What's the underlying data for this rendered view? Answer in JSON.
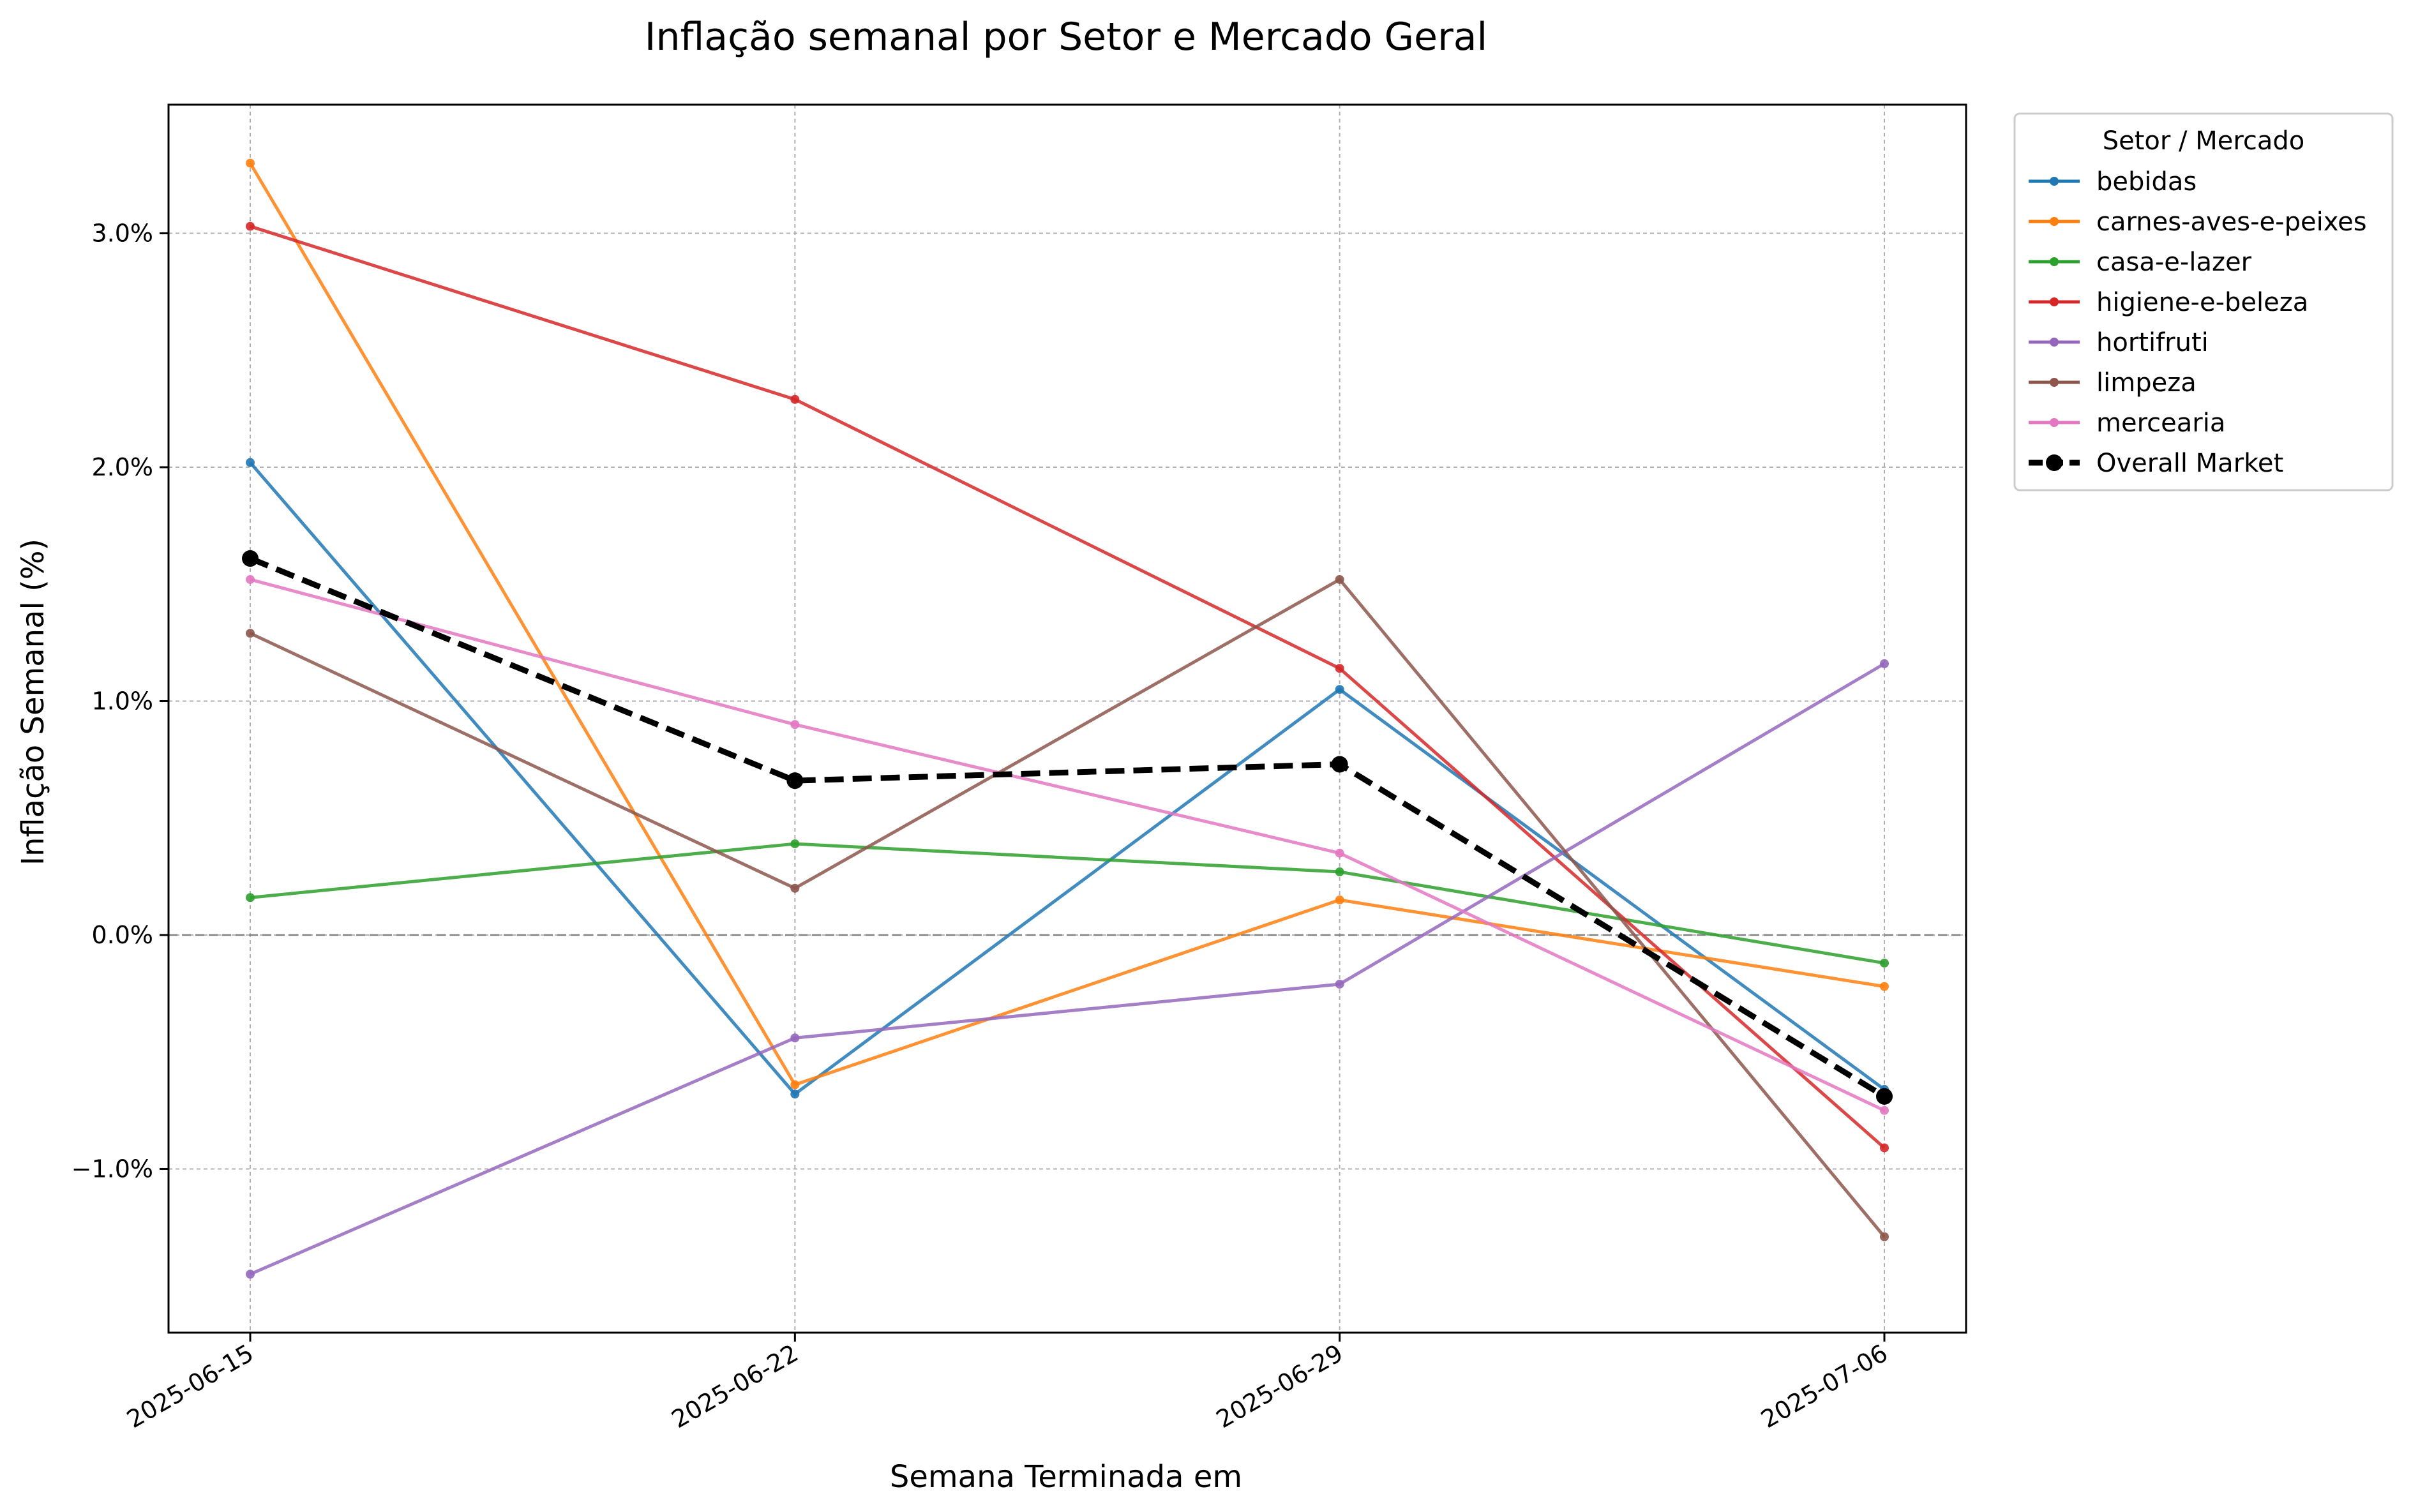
{
  "chart_data": {
    "type": "line",
    "title": "Inflação semanal por Setor e Mercado Geral",
    "xlabel": "Semana Terminada em",
    "ylabel": "Inflação Semanal (%)",
    "categories": [
      "2025-06-15",
      "2025-06-22",
      "2025-06-29",
      "2025-07-06"
    ],
    "ylim": [
      -1.7,
      3.55
    ],
    "yticks": [
      -1.0,
      0.0,
      1.0,
      2.0,
      3.0
    ],
    "ytick_labels": [
      "−1.0%",
      "0.0%",
      "1.0%",
      "2.0%",
      "3.0%"
    ],
    "grid": true,
    "zero_line": true,
    "legend": {
      "title": "Setor / Mercado",
      "placement": "outside-top-right"
    },
    "series": [
      {
        "name": "bebidas",
        "color": "#1f77b4",
        "values": [
          2.02,
          -0.68,
          1.05,
          -0.66
        ]
      },
      {
        "name": "carnes-aves-e-peixes",
        "color": "#ff7f0e",
        "values": [
          3.3,
          -0.64,
          0.15,
          -0.22
        ]
      },
      {
        "name": "casa-e-lazer",
        "color": "#2ca02c",
        "values": [
          0.16,
          0.39,
          0.27,
          -0.12
        ]
      },
      {
        "name": "higiene-e-beleza",
        "color": "#d62728",
        "values": [
          3.03,
          2.29,
          1.14,
          -0.91
        ]
      },
      {
        "name": "hortifruti",
        "color": "#9467bd",
        "values": [
          -1.45,
          -0.44,
          -0.21,
          1.16
        ]
      },
      {
        "name": "limpeza",
        "color": "#8c564b",
        "values": [
          1.29,
          0.2,
          1.52,
          -1.29
        ]
      },
      {
        "name": "mercearia",
        "color": "#e377c2",
        "values": [
          1.52,
          0.9,
          0.35,
          -0.75
        ]
      },
      {
        "name": "Overall Market",
        "color": "#000000",
        "dashed": true,
        "values": [
          1.61,
          0.66,
          0.73,
          -0.69
        ]
      }
    ]
  }
}
